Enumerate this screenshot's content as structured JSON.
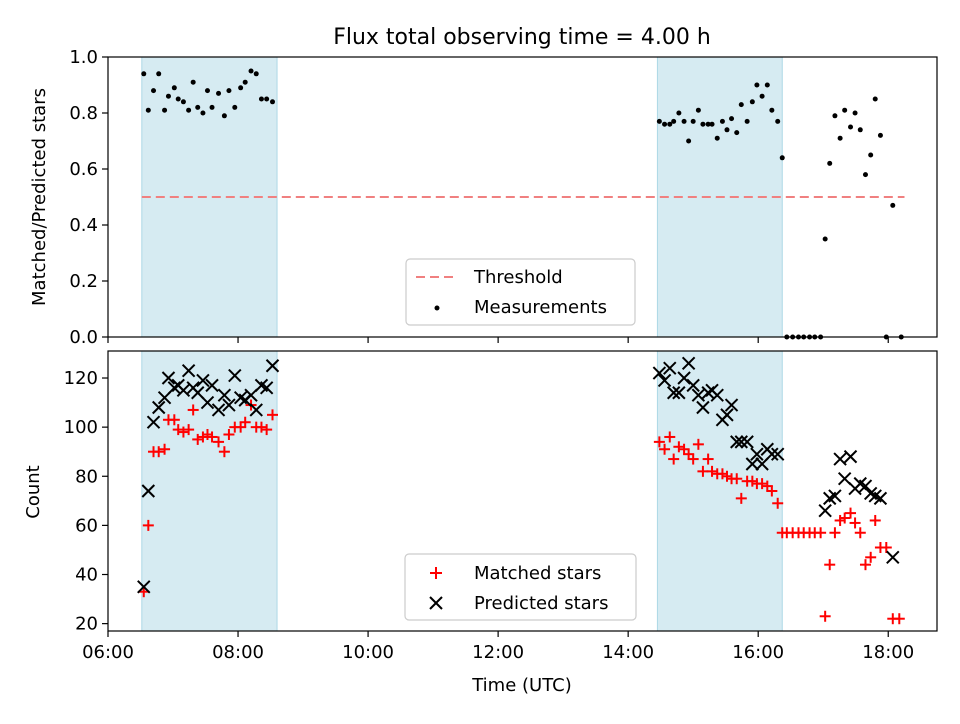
{
  "figure": {
    "title": "Flux total observing time = 4.00 h"
  },
  "chart_data": [
    {
      "type": "scatter",
      "ylabel": "Matched/Predicted stars",
      "xlim": [
        6.0,
        18.75
      ],
      "ylim": [
        0.0,
        1.0
      ],
      "yticks": [
        0.0,
        0.2,
        0.4,
        0.6,
        0.8,
        1.0
      ],
      "ytick_labels": [
        "0.0",
        "0.2",
        "0.4",
        "0.6",
        "0.8",
        "1.0"
      ],
      "shaded_spans": [
        [
          6.52,
          8.6
        ],
        [
          14.45,
          16.37
        ]
      ],
      "threshold": {
        "name": "Threshold",
        "y": 0.5,
        "x_range": [
          6.52,
          18.25
        ],
        "color": "#f08080"
      },
      "legend": {
        "position": "lower-center",
        "entries": [
          "Threshold",
          "Measurements"
        ]
      },
      "series": [
        {
          "name": "Measurements",
          "color": "#000000",
          "marker": "dot",
          "points": [
            [
              6.55,
              0.94
            ],
            [
              6.62,
              0.81
            ],
            [
              6.7,
              0.88
            ],
            [
              6.78,
              0.94
            ],
            [
              6.87,
              0.81
            ],
            [
              6.93,
              0.86
            ],
            [
              7.02,
              0.89
            ],
            [
              7.08,
              0.85
            ],
            [
              7.16,
              0.84
            ],
            [
              7.24,
              0.81
            ],
            [
              7.31,
              0.91
            ],
            [
              7.38,
              0.82
            ],
            [
              7.46,
              0.8
            ],
            [
              7.53,
              0.88
            ],
            [
              7.6,
              0.82
            ],
            [
              7.7,
              0.87
            ],
            [
              7.79,
              0.79
            ],
            [
              7.86,
              0.88
            ],
            [
              7.95,
              0.82
            ],
            [
              8.04,
              0.89
            ],
            [
              8.11,
              0.91
            ],
            [
              8.2,
              0.95
            ],
            [
              8.28,
              0.94
            ],
            [
              8.36,
              0.85
            ],
            [
              8.44,
              0.85
            ],
            [
              8.53,
              0.84
            ],
            [
              14.48,
              0.77
            ],
            [
              14.56,
              0.76
            ],
            [
              14.64,
              0.76
            ],
            [
              14.7,
              0.77
            ],
            [
              14.78,
              0.8
            ],
            [
              14.86,
              0.77
            ],
            [
              14.93,
              0.7
            ],
            [
              15.0,
              0.77
            ],
            [
              15.08,
              0.81
            ],
            [
              15.15,
              0.76
            ],
            [
              15.23,
              0.76
            ],
            [
              15.29,
              0.76
            ],
            [
              15.37,
              0.71
            ],
            [
              15.45,
              0.77
            ],
            [
              15.52,
              0.74
            ],
            [
              15.59,
              0.78
            ],
            [
              15.67,
              0.73
            ],
            [
              15.74,
              0.83
            ],
            [
              15.83,
              0.77
            ],
            [
              15.91,
              0.84
            ],
            [
              15.98,
              0.9
            ],
            [
              16.06,
              0.86
            ],
            [
              16.14,
              0.9
            ],
            [
              16.21,
              0.81
            ],
            [
              16.3,
              0.77
            ],
            [
              16.37,
              0.64
            ],
            [
              16.44,
              0.0
            ],
            [
              16.53,
              0.0
            ],
            [
              16.62,
              0.0
            ],
            [
              16.7,
              0.0
            ],
            [
              16.79,
              0.0
            ],
            [
              16.87,
              0.0
            ],
            [
              16.96,
              0.0
            ],
            [
              17.03,
              0.35
            ],
            [
              17.1,
              0.62
            ],
            [
              17.18,
              0.79
            ],
            [
              17.26,
              0.71
            ],
            [
              17.33,
              0.81
            ],
            [
              17.42,
              0.75
            ],
            [
              17.49,
              0.8
            ],
            [
              17.57,
              0.74
            ],
            [
              17.65,
              0.58
            ],
            [
              17.73,
              0.65
            ],
            [
              17.8,
              0.85
            ],
            [
              17.88,
              0.72
            ],
            [
              17.97,
              0.0
            ],
            [
              18.07,
              0.47
            ],
            [
              18.2,
              0.0
            ]
          ]
        }
      ]
    },
    {
      "type": "scatter",
      "xlabel": "Time (UTC)",
      "ylabel": "Count",
      "xlim": [
        6.0,
        18.75
      ],
      "ylim": [
        17,
        131
      ],
      "xticks": [
        6,
        8,
        10,
        12,
        14,
        16,
        18
      ],
      "xtick_labels": [
        "06:00",
        "08:00",
        "10:00",
        "12:00",
        "14:00",
        "16:00",
        "18:00"
      ],
      "yticks": [
        20,
        40,
        60,
        80,
        100,
        120
      ],
      "ytick_labels": [
        "20",
        "40",
        "60",
        "80",
        "100",
        "120"
      ],
      "shaded_spans": [
        [
          6.52,
          8.6
        ],
        [
          14.45,
          16.37
        ]
      ],
      "legend": {
        "position": "lower-center",
        "entries": [
          "Matched stars",
          "Predicted stars"
        ]
      },
      "series": [
        {
          "name": "Matched stars",
          "color": "#ff0000",
          "marker": "plus",
          "points": [
            [
              6.55,
              33
            ],
            [
              6.62,
              60
            ],
            [
              6.7,
              90
            ],
            [
              6.78,
              90
            ],
            [
              6.87,
              91
            ],
            [
              6.93,
              103
            ],
            [
              7.02,
              103
            ],
            [
              7.08,
              99
            ],
            [
              7.16,
              98
            ],
            [
              7.24,
              99
            ],
            [
              7.31,
              107
            ],
            [
              7.38,
              95
            ],
            [
              7.46,
              96
            ],
            [
              7.53,
              97
            ],
            [
              7.6,
              96
            ],
            [
              7.7,
              94
            ],
            [
              7.79,
              90
            ],
            [
              7.86,
              97
            ],
            [
              7.95,
              100
            ],
            [
              8.04,
              100
            ],
            [
              8.11,
              102
            ],
            [
              8.2,
              109
            ],
            [
              8.28,
              100
            ],
            [
              8.36,
              100
            ],
            [
              8.44,
              99
            ],
            [
              8.53,
              105
            ],
            [
              14.48,
              94
            ],
            [
              14.56,
              91
            ],
            [
              14.64,
              96
            ],
            [
              14.7,
              87
            ],
            [
              14.78,
              92
            ],
            [
              14.86,
              91
            ],
            [
              14.93,
              89
            ],
            [
              15.0,
              87
            ],
            [
              15.08,
              93
            ],
            [
              15.15,
              82
            ],
            [
              15.23,
              87
            ],
            [
              15.29,
              82
            ],
            [
              15.37,
              81
            ],
            [
              15.45,
              81
            ],
            [
              15.52,
              80
            ],
            [
              15.59,
              79
            ],
            [
              15.67,
              79
            ],
            [
              15.74,
              71
            ],
            [
              15.83,
              78
            ],
            [
              15.91,
              78
            ],
            [
              15.98,
              77
            ],
            [
              16.06,
              77
            ],
            [
              16.14,
              76
            ],
            [
              16.21,
              74
            ],
            [
              16.3,
              69
            ],
            [
              16.37,
              57
            ],
            [
              16.44,
              57
            ],
            [
              16.53,
              57
            ],
            [
              16.62,
              57
            ],
            [
              16.7,
              57
            ],
            [
              16.79,
              57
            ],
            [
              16.87,
              57
            ],
            [
              16.96,
              57
            ],
            [
              17.03,
              23
            ],
            [
              17.1,
              44
            ],
            [
              17.18,
              57
            ],
            [
              17.26,
              62
            ],
            [
              17.33,
              63
            ],
            [
              17.42,
              65
            ],
            [
              17.49,
              61
            ],
            [
              17.57,
              57
            ],
            [
              17.65,
              44
            ],
            [
              17.73,
              47
            ],
            [
              17.8,
              62
            ],
            [
              17.88,
              51
            ],
            [
              17.97,
              51
            ],
            [
              18.07,
              22
            ],
            [
              18.17,
              22
            ]
          ]
        },
        {
          "name": "Predicted stars",
          "color": "#000000",
          "marker": "x",
          "points": [
            [
              6.55,
              35
            ],
            [
              6.62,
              74
            ],
            [
              6.7,
              102
            ],
            [
              6.78,
              108
            ],
            [
              6.87,
              112
            ],
            [
              6.93,
              120
            ],
            [
              7.02,
              116
            ],
            [
              7.08,
              117
            ],
            [
              7.16,
              115
            ],
            [
              7.24,
              123
            ],
            [
              7.31,
              116
            ],
            [
              7.38,
              114
            ],
            [
              7.46,
              119
            ],
            [
              7.53,
              110
            ],
            [
              7.6,
              117
            ],
            [
              7.7,
              107
            ],
            [
              7.79,
              113
            ],
            [
              7.86,
              109
            ],
            [
              7.95,
              121
            ],
            [
              8.04,
              112
            ],
            [
              8.11,
              111
            ],
            [
              8.2,
              113
            ],
            [
              8.28,
              107
            ],
            [
              8.36,
              117
            ],
            [
              8.44,
              116
            ],
            [
              8.53,
              125
            ],
            [
              14.48,
              122
            ],
            [
              14.56,
              119
            ],
            [
              14.64,
              124
            ],
            [
              14.7,
              114
            ],
            [
              14.78,
              114
            ],
            [
              14.86,
              120
            ],
            [
              14.93,
              126
            ],
            [
              15.0,
              117
            ],
            [
              15.08,
              113
            ],
            [
              15.15,
              108
            ],
            [
              15.23,
              114
            ],
            [
              15.29,
              115
            ],
            [
              15.37,
              113
            ],
            [
              15.45,
              103
            ],
            [
              15.52,
              105
            ],
            [
              15.59,
              109
            ],
            [
              15.67,
              94
            ],
            [
              15.74,
              94
            ],
            [
              15.83,
              94
            ],
            [
              15.91,
              85
            ],
            [
              15.98,
              89
            ],
            [
              16.06,
              85
            ],
            [
              16.14,
              91
            ],
            [
              16.21,
              89
            ],
            [
              16.3,
              89
            ],
            [
              17.03,
              66
            ],
            [
              17.1,
              71
            ],
            [
              17.18,
              72
            ],
            [
              17.26,
              87
            ],
            [
              17.33,
              79
            ],
            [
              17.42,
              88
            ],
            [
              17.49,
              75
            ],
            [
              17.57,
              77
            ],
            [
              17.65,
              76
            ],
            [
              17.73,
              73
            ],
            [
              17.8,
              72
            ],
            [
              17.88,
              71
            ],
            [
              18.07,
              47
            ]
          ]
        }
      ]
    }
  ]
}
